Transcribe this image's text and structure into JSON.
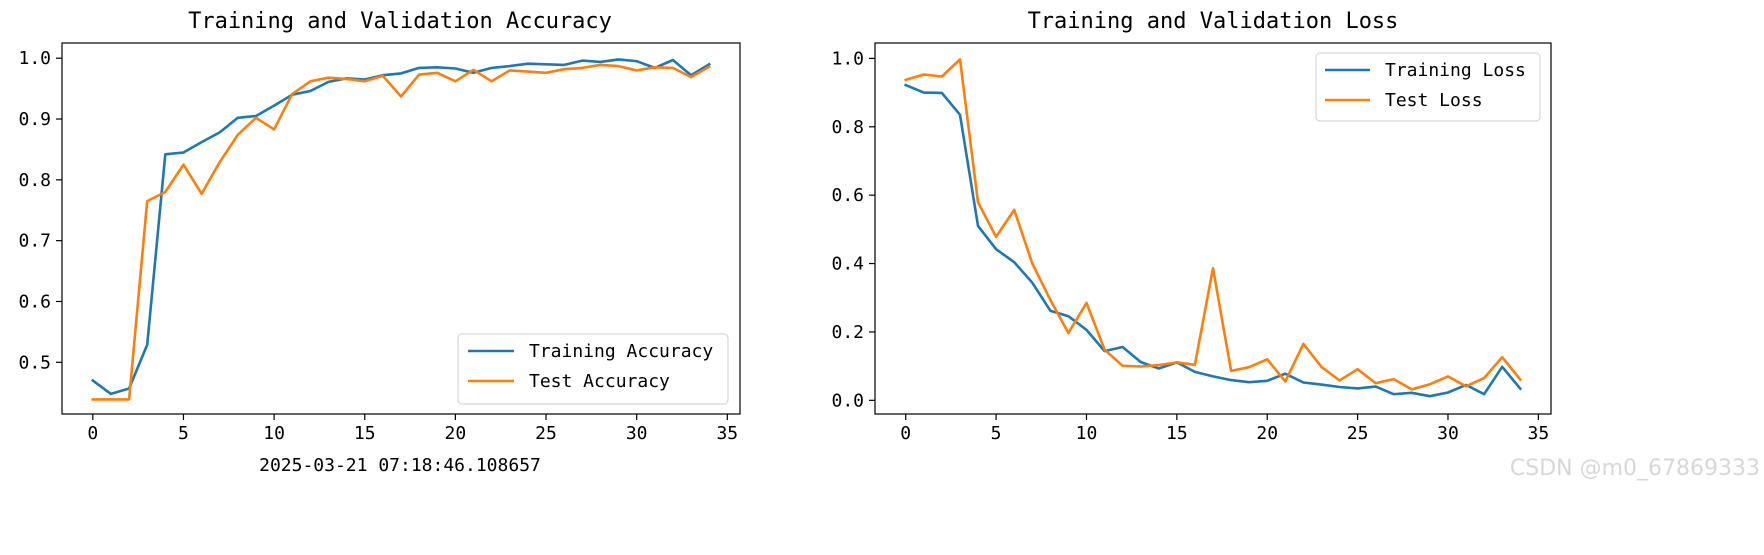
{
  "timestamp": "2025-03-21 07:18:46.108657",
  "watermark": "CSDN @m0_67869333",
  "colors": {
    "training": "#1f77b4",
    "test": "#ff7f0e"
  },
  "chart_data": [
    {
      "type": "line",
      "title": "Training and Validation Accuracy",
      "xlabel": "",
      "ylabel": "",
      "xlim": [
        -1.7,
        35.7
      ],
      "ylim": [
        0.415,
        1.025
      ],
      "xticks": [
        0,
        5,
        10,
        15,
        20,
        25,
        30,
        35
      ],
      "yticks": [
        0.5,
        0.6,
        0.7,
        0.8,
        0.9,
        1.0
      ],
      "ytick_format": 1,
      "grid": false,
      "legend_position": "lower-right",
      "x": [
        0,
        1,
        2,
        3,
        4,
        5,
        6,
        7,
        8,
        9,
        10,
        11,
        12,
        13,
        14,
        15,
        16,
        17,
        18,
        19,
        20,
        21,
        22,
        23,
        24,
        25,
        26,
        27,
        28,
        29,
        30,
        31,
        32,
        33,
        34
      ],
      "series": [
        {
          "name": "Training Accuracy",
          "color": "#1f77b4",
          "values": [
            0.47,
            0.448,
            0.457,
            0.529,
            0.842,
            0.845,
            0.862,
            0.878,
            0.902,
            0.905,
            0.922,
            0.94,
            0.946,
            0.961,
            0.967,
            0.965,
            0.972,
            0.975,
            0.984,
            0.985,
            0.983,
            0.976,
            0.984,
            0.987,
            0.991,
            0.99,
            0.989,
            0.996,
            0.994,
            0.998,
            0.995,
            0.984,
            0.997,
            0.972,
            0.99
          ]
        },
        {
          "name": "Test Accuracy",
          "color": "#ff7f0e",
          "values": [
            0.439,
            0.439,
            0.439,
            0.765,
            0.78,
            0.825,
            0.777,
            0.829,
            0.874,
            0.902,
            0.883,
            0.941,
            0.962,
            0.968,
            0.966,
            0.962,
            0.971,
            0.937,
            0.973,
            0.976,
            0.962,
            0.981,
            0.962,
            0.98,
            0.978,
            0.976,
            0.982,
            0.984,
            0.989,
            0.987,
            0.98,
            0.985,
            0.984,
            0.969,
            0.986
          ]
        }
      ]
    },
    {
      "type": "line",
      "title": "Training and Validation Loss",
      "xlabel": "",
      "ylabel": "",
      "xlim": [
        -1.7,
        35.7
      ],
      "ylim": [
        -0.04,
        1.045
      ],
      "xticks": [
        0,
        5,
        10,
        15,
        20,
        25,
        30,
        35
      ],
      "yticks": [
        0.0,
        0.2,
        0.4,
        0.6,
        0.8,
        1.0
      ],
      "ytick_format": 1,
      "grid": false,
      "legend_position": "upper-right",
      "x": [
        0,
        1,
        2,
        3,
        4,
        5,
        6,
        7,
        8,
        9,
        10,
        11,
        12,
        13,
        14,
        15,
        16,
        17,
        18,
        19,
        20,
        21,
        22,
        23,
        24,
        25,
        26,
        27,
        28,
        29,
        30,
        31,
        32,
        33,
        34
      ],
      "series": [
        {
          "name": "Training Loss",
          "color": "#1f77b4",
          "values": [
            0.922,
            0.9,
            0.899,
            0.835,
            0.51,
            0.442,
            0.404,
            0.344,
            0.262,
            0.246,
            0.206,
            0.144,
            0.156,
            0.112,
            0.093,
            0.111,
            0.083,
            0.07,
            0.059,
            0.053,
            0.057,
            0.078,
            0.052,
            0.046,
            0.039,
            0.035,
            0.04,
            0.018,
            0.022,
            0.012,
            0.023,
            0.045,
            0.018,
            0.098,
            0.034
          ]
        },
        {
          "name": "Test Loss",
          "color": "#ff7f0e",
          "values": [
            0.937,
            0.953,
            0.947,
            0.997,
            0.579,
            0.478,
            0.557,
            0.4,
            0.294,
            0.197,
            0.285,
            0.148,
            0.101,
            0.099,
            0.103,
            0.111,
            0.104,
            0.386,
            0.086,
            0.097,
            0.12,
            0.055,
            0.165,
            0.098,
            0.058,
            0.091,
            0.05,
            0.062,
            0.032,
            0.047,
            0.07,
            0.041,
            0.065,
            0.126,
            0.061
          ]
        }
      ]
    }
  ]
}
